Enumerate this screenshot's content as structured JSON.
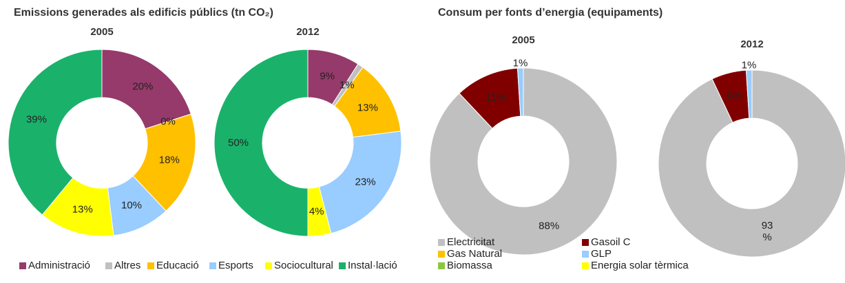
{
  "chart_data": [
    {
      "type": "donut",
      "title": "Emissions generades als edificis públics (tn CO₂)",
      "categories": [
        "Administració",
        "Altres",
        "Educació",
        "Esports",
        "Sociocultural",
        "Instal·lació"
      ],
      "colors": [
        "#953a6b",
        "#c0c0c0",
        "#ffc000",
        "#99ccff",
        "#ffff00",
        "#1ab26b"
      ],
      "legend": "bottom",
      "series": [
        {
          "name": "2005",
          "values": [
            20,
            0,
            18,
            10,
            13,
            39
          ],
          "value_labels": [
            "20%",
            "0%",
            "18%",
            "10%",
            "13%",
            "39%"
          ]
        },
        {
          "name": "2012",
          "values": [
            9,
            1,
            13,
            23,
            4,
            50
          ],
          "value_labels": [
            "9%",
            "1%",
            "13%",
            "23%",
            "4%",
            "50%"
          ]
        }
      ]
    },
    {
      "type": "donut",
      "title": "Consum per fonts d’energia (equipaments)",
      "categories": [
        "Electricitat",
        "Gasoil C",
        "Gas Natural",
        "GLP",
        "Biomassa",
        "Energia solar tèrmica"
      ],
      "colors": [
        "#c0c0c0",
        "#800000",
        "#ffc000",
        "#99ccff",
        "#8cc63f",
        "#ffff00"
      ],
      "legend": "bottom",
      "series": [
        {
          "name": "2005",
          "values": [
            88,
            11,
            0,
            1,
            0,
            0
          ],
          "value_labels": [
            "88%",
            "11%",
            null,
            "1%",
            null,
            null
          ]
        },
        {
          "name": "2012",
          "values": [
            93,
            6,
            0,
            1,
            0,
            0
          ],
          "value_labels": [
            "93\n%",
            "6%",
            null,
            "1%",
            null,
            null
          ]
        }
      ]
    }
  ]
}
